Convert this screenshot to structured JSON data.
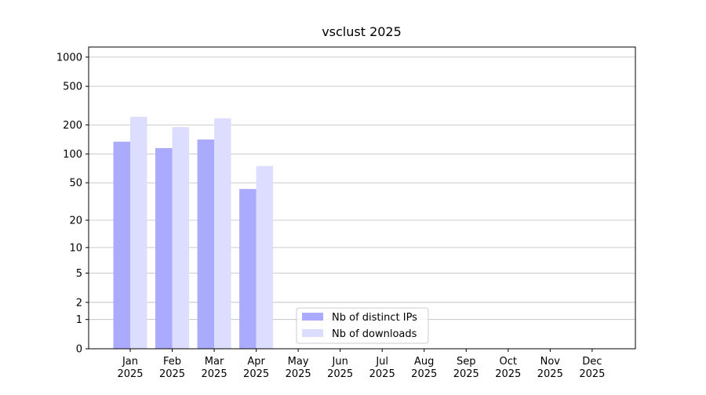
{
  "chart_data": {
    "type": "bar",
    "title": "vsclust 2025",
    "categories": [
      "Jan 2025",
      "Feb 2025",
      "Mar 2025",
      "Apr 2025",
      "May 2025",
      "Jun 2025",
      "Jul 2025",
      "Aug 2025",
      "Sep 2025",
      "Oct 2025",
      "Nov 2025",
      "Dec 2025"
    ],
    "series": [
      {
        "name": "Nb of distinct IPs",
        "color": "#aaaaff",
        "values": [
          134,
          115,
          141,
          43,
          null,
          null,
          null,
          null,
          null,
          null,
          null,
          null
        ]
      },
      {
        "name": "Nb of downloads",
        "color": "#ddddff",
        "values": [
          243,
          190,
          234,
          75,
          null,
          null,
          null,
          null,
          null,
          null,
          null,
          null
        ]
      }
    ],
    "yscale": "log1p",
    "ylim": [
      0,
      1270
    ],
    "yticks": [
      0,
      1,
      2,
      5,
      10,
      20,
      50,
      100,
      200,
      500,
      1000
    ],
    "grid": true,
    "legend": "lower center"
  }
}
